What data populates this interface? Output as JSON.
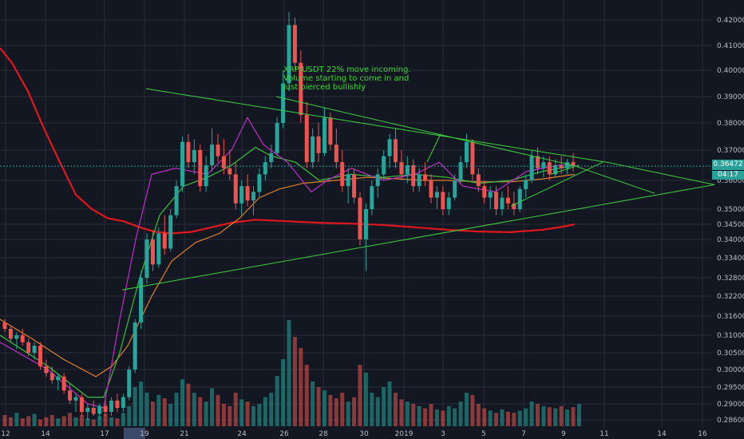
{
  "annotation": {
    "line1": "XRP/USDT 22% move incoming.",
    "line2": "Volume starting to come in and",
    "line3": "just pierced bullishly"
  },
  "price_tag": "0.36472",
  "time_tag": "04:17",
  "colors": {
    "background": "#131722",
    "grid": "#2a2e39",
    "up": "#26a69a",
    "down": "#ef5350",
    "ma_long": "#e1171d",
    "ma_mid": "#e0802b",
    "ma_short": "#3fbf3f",
    "ma_fast": "#c02ec7",
    "trendline": "#3fd23f"
  },
  "chart_data": {
    "type": "candlestick",
    "symbol": "XRP/USDT",
    "y_ticks": [
      "0.42000",
      "0.41000",
      "0.40000",
      "0.39000",
      "0.38000",
      "0.37000",
      "0.36000",
      "0.35000",
      "0.34500",
      "0.34000",
      "0.33400",
      "0.32800",
      "0.32200",
      "0.31600",
      "0.31000",
      "0.30500",
      "0.30000",
      "0.29500",
      "0.29000",
      "0.28600"
    ],
    "x_ticks": [
      "12",
      "14",
      "17",
      "19",
      "21",
      "24",
      "26",
      "28",
      "30",
      "2019",
      "3",
      "5",
      "7",
      "9",
      "11",
      "14",
      "16"
    ],
    "current_price": 0.36472,
    "candles": [
      [
        0.314,
        0.315,
        0.311,
        0.312
      ],
      [
        0.312,
        0.313,
        0.308,
        0.309
      ],
      [
        0.309,
        0.311,
        0.306,
        0.31
      ],
      [
        0.31,
        0.312,
        0.307,
        0.308
      ],
      [
        0.308,
        0.309,
        0.304,
        0.305
      ],
      [
        0.305,
        0.308,
        0.303,
        0.307
      ],
      [
        0.307,
        0.308,
        0.3,
        0.301
      ],
      [
        0.301,
        0.303,
        0.298,
        0.299
      ],
      [
        0.299,
        0.301,
        0.296,
        0.297
      ],
      [
        0.297,
        0.299,
        0.294,
        0.298
      ],
      [
        0.298,
        0.299,
        0.293,
        0.294
      ],
      [
        0.294,
        0.296,
        0.29,
        0.291
      ],
      [
        0.291,
        0.293,
        0.288,
        0.292
      ],
      [
        0.292,
        0.293,
        0.287,
        0.288
      ],
      [
        0.288,
        0.29,
        0.286,
        0.289
      ],
      [
        0.289,
        0.291,
        0.287,
        0.2875
      ],
      [
        0.2875,
        0.29,
        0.2862,
        0.2895
      ],
      [
        0.2895,
        0.291,
        0.287,
        0.288
      ],
      [
        0.288,
        0.292,
        0.287,
        0.291
      ],
      [
        0.291,
        0.293,
        0.288,
        0.289
      ],
      [
        0.289,
        0.293,
        0.288,
        0.292
      ],
      [
        0.292,
        0.301,
        0.291,
        0.3
      ],
      [
        0.3,
        0.315,
        0.299,
        0.314
      ],
      [
        0.314,
        0.33,
        0.312,
        0.328
      ],
      [
        0.328,
        0.342,
        0.326,
        0.34
      ],
      [
        0.34,
        0.343,
        0.33,
        0.332
      ],
      [
        0.332,
        0.344,
        0.331,
        0.342
      ],
      [
        0.342,
        0.348,
        0.335,
        0.337
      ],
      [
        0.337,
        0.35,
        0.336,
        0.348
      ],
      [
        0.348,
        0.36,
        0.347,
        0.358
      ],
      [
        0.358,
        0.375,
        0.356,
        0.373
      ],
      [
        0.373,
        0.376,
        0.364,
        0.366
      ],
      [
        0.366,
        0.374,
        0.362,
        0.37
      ],
      [
        0.37,
        0.372,
        0.356,
        0.358
      ],
      [
        0.358,
        0.368,
        0.356,
        0.365
      ],
      [
        0.365,
        0.378,
        0.363,
        0.372
      ],
      [
        0.372,
        0.376,
        0.366,
        0.368
      ],
      [
        0.368,
        0.374,
        0.362,
        0.364
      ],
      [
        0.364,
        0.37,
        0.36,
        0.362
      ],
      [
        0.362,
        0.366,
        0.35,
        0.352
      ],
      [
        0.352,
        0.36,
        0.348,
        0.358
      ],
      [
        0.358,
        0.362,
        0.351,
        0.353
      ],
      [
        0.353,
        0.358,
        0.348,
        0.356
      ],
      [
        0.356,
        0.364,
        0.354,
        0.362
      ],
      [
        0.362,
        0.368,
        0.36,
        0.366
      ],
      [
        0.366,
        0.372,
        0.364,
        0.369
      ],
      [
        0.369,
        0.382,
        0.368,
        0.38
      ],
      [
        0.38,
        0.4,
        0.378,
        0.395
      ],
      [
        0.395,
        0.423,
        0.392,
        0.418
      ],
      [
        0.418,
        0.421,
        0.4,
        0.403
      ],
      [
        0.403,
        0.408,
        0.38,
        0.383
      ],
      [
        0.383,
        0.388,
        0.364,
        0.366
      ],
      [
        0.366,
        0.378,
        0.364,
        0.375
      ],
      [
        0.375,
        0.38,
        0.366,
        0.369
      ],
      [
        0.369,
        0.386,
        0.368,
        0.382
      ],
      [
        0.382,
        0.384,
        0.37,
        0.372
      ],
      [
        0.372,
        0.378,
        0.364,
        0.366
      ],
      [
        0.366,
        0.37,
        0.356,
        0.358
      ],
      [
        0.358,
        0.364,
        0.352,
        0.362
      ],
      [
        0.362,
        0.364,
        0.352,
        0.354
      ],
      [
        0.354,
        0.356,
        0.338,
        0.34
      ],
      [
        0.34,
        0.352,
        0.33,
        0.35
      ],
      [
        0.35,
        0.36,
        0.348,
        0.358
      ],
      [
        0.358,
        0.364,
        0.354,
        0.362
      ],
      [
        0.362,
        0.37,
        0.36,
        0.368
      ],
      [
        0.368,
        0.376,
        0.364,
        0.374
      ],
      [
        0.374,
        0.378,
        0.364,
        0.366
      ],
      [
        0.366,
        0.37,
        0.36,
        0.362
      ],
      [
        0.362,
        0.368,
        0.359,
        0.365
      ],
      [
        0.365,
        0.367,
        0.356,
        0.358
      ],
      [
        0.358,
        0.364,
        0.356,
        0.362
      ],
      [
        0.362,
        0.366,
        0.358,
        0.36
      ],
      [
        0.36,
        0.362,
        0.352,
        0.354
      ],
      [
        0.354,
        0.358,
        0.35,
        0.356
      ],
      [
        0.356,
        0.358,
        0.348,
        0.35
      ],
      [
        0.35,
        0.356,
        0.348,
        0.354
      ],
      [
        0.354,
        0.362,
        0.353,
        0.36
      ],
      [
        0.36,
        0.368,
        0.359,
        0.366
      ],
      [
        0.366,
        0.376,
        0.364,
        0.373
      ],
      [
        0.373,
        0.374,
        0.36,
        0.362
      ],
      [
        0.362,
        0.364,
        0.356,
        0.358
      ],
      [
        0.358,
        0.36,
        0.352,
        0.354
      ],
      [
        0.354,
        0.358,
        0.35,
        0.356
      ],
      [
        0.356,
        0.358,
        0.348,
        0.35
      ],
      [
        0.35,
        0.356,
        0.348,
        0.354
      ],
      [
        0.354,
        0.358,
        0.35,
        0.352
      ],
      [
        0.352,
        0.356,
        0.348,
        0.35
      ],
      [
        0.35,
        0.358,
        0.349,
        0.357
      ],
      [
        0.357,
        0.362,
        0.354,
        0.36
      ],
      [
        0.36,
        0.37,
        0.359,
        0.368
      ],
      [
        0.368,
        0.371,
        0.362,
        0.364
      ],
      [
        0.364,
        0.368,
        0.361,
        0.366
      ],
      [
        0.366,
        0.368,
        0.36,
        0.362
      ],
      [
        0.362,
        0.367,
        0.361,
        0.365
      ],
      [
        0.365,
        0.368,
        0.362,
        0.364
      ],
      [
        0.364,
        0.367,
        0.362,
        0.366
      ],
      [
        0.366,
        0.369,
        0.363,
        0.3647
      ]
    ],
    "volumes": [
      0.1,
      0.08,
      0.12,
      0.07,
      0.09,
      0.11,
      0.06,
      0.08,
      0.1,
      0.07,
      0.09,
      0.12,
      0.08,
      0.1,
      0.07,
      0.06,
      0.09,
      0.11,
      0.08,
      0.07,
      0.12,
      0.18,
      0.35,
      0.4,
      0.3,
      0.22,
      0.28,
      0.25,
      0.2,
      0.3,
      0.42,
      0.38,
      0.3,
      0.26,
      0.22,
      0.34,
      0.28,
      0.2,
      0.18,
      0.3,
      0.24,
      0.22,
      0.18,
      0.2,
      0.26,
      0.3,
      0.45,
      0.6,
      0.95,
      0.8,
      0.7,
      0.55,
      0.4,
      0.35,
      0.32,
      0.28,
      0.25,
      0.3,
      0.22,
      0.26,
      0.55,
      0.48,
      0.3,
      0.26,
      0.35,
      0.4,
      0.3,
      0.24,
      0.22,
      0.2,
      0.18,
      0.16,
      0.2,
      0.15,
      0.14,
      0.18,
      0.16,
      0.22,
      0.3,
      0.28,
      0.2,
      0.16,
      0.14,
      0.12,
      0.15,
      0.13,
      0.12,
      0.14,
      0.16,
      0.22,
      0.2,
      0.18,
      0.17,
      0.16,
      0.18,
      0.15,
      0.17,
      0.2
    ],
    "moving_averages": [
      {
        "name": "MA long",
        "color": "#e1171d",
        "values": [
          [
            0,
            0.409
          ],
          [
            15,
            0.403
          ],
          [
            35,
            0.392
          ],
          [
            55,
            0.378
          ],
          [
            75,
            0.366
          ],
          [
            95,
            0.355
          ],
          [
            115,
            0.35
          ],
          [
            135,
            0.347
          ],
          [
            155,
            0.346
          ],
          [
            175,
            0.344
          ],
          [
            195,
            0.3425
          ],
          [
            215,
            0.342
          ],
          [
            240,
            0.3425
          ],
          [
            265,
            0.344
          ],
          [
            290,
            0.3455
          ],
          [
            320,
            0.3465
          ],
          [
            360,
            0.346
          ],
          [
            400,
            0.3455
          ],
          [
            440,
            0.3452
          ],
          [
            480,
            0.3448
          ],
          [
            520,
            0.344
          ],
          [
            560,
            0.3432
          ],
          [
            600,
            0.3426
          ],
          [
            640,
            0.3424
          ],
          [
            680,
            0.3432
          ],
          [
            705,
            0.3442
          ],
          [
            720,
            0.345
          ]
        ]
      },
      {
        "name": "MA mid",
        "color": "#e0802b",
        "values": [
          [
            0,
            0.315
          ],
          [
            40,
            0.309
          ],
          [
            80,
            0.303
          ],
          [
            120,
            0.298
          ],
          [
            140,
            0.301
          ],
          [
            160,
            0.307
          ],
          [
            190,
            0.322
          ],
          [
            215,
            0.333
          ],
          [
            245,
            0.339
          ],
          [
            275,
            0.342
          ],
          [
            300,
            0.347
          ],
          [
            325,
            0.354
          ],
          [
            350,
            0.357
          ],
          [
            380,
            0.359
          ],
          [
            420,
            0.36
          ],
          [
            460,
            0.361
          ],
          [
            500,
            0.3605
          ],
          [
            530,
            0.36
          ],
          [
            560,
            0.36
          ],
          [
            600,
            0.3595
          ],
          [
            640,
            0.3595
          ],
          [
            680,
            0.3605
          ],
          [
            720,
            0.362
          ]
        ]
      },
      {
        "name": "MA short",
        "color": "#3fbf3f",
        "values": [
          [
            0,
            0.31
          ],
          [
            60,
            0.301
          ],
          [
            110,
            0.292
          ],
          [
            130,
            0.292
          ],
          [
            150,
            0.305
          ],
          [
            175,
            0.328
          ],
          [
            200,
            0.348
          ],
          [
            230,
            0.358
          ],
          [
            260,
            0.361
          ],
          [
            290,
            0.365
          ],
          [
            320,
            0.371
          ],
          [
            340,
            0.368
          ],
          [
            370,
            0.366
          ],
          [
            400,
            0.36
          ],
          [
            440,
            0.362
          ],
          [
            480,
            0.361
          ],
          [
            520,
            0.362
          ],
          [
            560,
            0.361
          ],
          [
            600,
            0.359
          ],
          [
            640,
            0.36
          ],
          [
            680,
            0.363
          ],
          [
            720,
            0.365
          ]
        ]
      },
      {
        "name": "MA fast",
        "color": "#c02ec7",
        "values": [
          [
            0,
            0.308
          ],
          [
            60,
            0.3
          ],
          [
            110,
            0.29
          ],
          [
            130,
            0.289
          ],
          [
            150,
            0.315
          ],
          [
            170,
            0.34
          ],
          [
            190,
            0.362
          ],
          [
            220,
            0.364
          ],
          [
            260,
            0.362
          ],
          [
            290,
            0.37
          ],
          [
            310,
            0.382
          ],
          [
            330,
            0.372
          ],
          [
            360,
            0.366
          ],
          [
            390,
            0.356
          ],
          [
            410,
            0.36
          ],
          [
            440,
            0.364
          ],
          [
            480,
            0.36
          ],
          [
            520,
            0.362
          ],
          [
            550,
            0.366
          ],
          [
            580,
            0.358
          ],
          [
            620,
            0.356
          ],
          [
            660,
            0.363
          ],
          [
            700,
            0.365
          ],
          [
            720,
            0.365
          ]
        ]
      }
    ],
    "trendlines": [
      {
        "name": "upper",
        "points": [
          [
            183,
            0.393
          ],
          [
            760,
            0.366
          ],
          [
            895,
            0.3585
          ]
        ]
      },
      {
        "name": "upper2",
        "points": [
          [
            346,
            0.39
          ],
          [
            720,
            0.3648
          ],
          [
            820,
            0.3555
          ]
        ]
      },
      {
        "name": "lower",
        "points": [
          [
            153,
            0.324
          ],
          [
            895,
            0.3585
          ]
        ]
      },
      {
        "name": "lower2",
        "points": [
          [
            640,
            0.351
          ],
          [
            755,
            0.366
          ]
        ]
      },
      {
        "name": "channel",
        "points": [
          [
            690,
            0.362
          ],
          [
            725,
            0.365
          ]
        ]
      },
      {
        "name": "spike",
        "points": [
          [
            535,
            0.366
          ],
          [
            552,
            0.376
          ]
        ]
      }
    ]
  }
}
